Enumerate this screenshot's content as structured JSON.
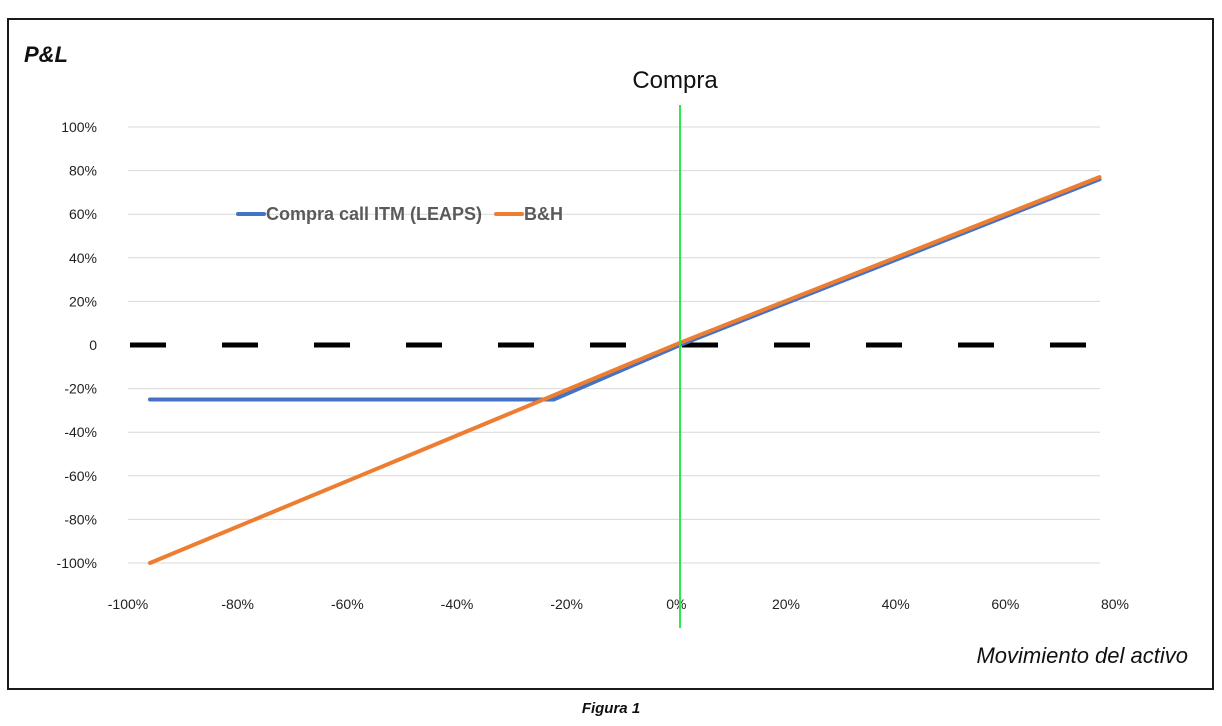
{
  "chart_data": {
    "type": "line",
    "ylabel": "P&L",
    "xlabel": "Movimiento del activo",
    "caption": "Figura 1",
    "vline": {
      "x": 0,
      "label": "Compra",
      "color": "#2ee84a"
    },
    "zero_line": {
      "style": "dashed",
      "color": "#000000"
    },
    "xticks": [
      {
        "label": "-100%"
      },
      {
        "label": "-80%"
      },
      {
        "label": "-60%"
      },
      {
        "label": "-40%"
      },
      {
        "label": "-20%"
      },
      {
        "label": "0%"
      },
      {
        "label": "20%"
      },
      {
        "label": "40%"
      },
      {
        "label": "60%"
      },
      {
        "label": "80%"
      }
    ],
    "yticks": [
      {
        "v": 100,
        "label": "100%"
      },
      {
        "v": 80,
        "label": "80%"
      },
      {
        "v": 60,
        "label": "60%"
      },
      {
        "v": 40,
        "label": "40%"
      },
      {
        "v": 20,
        "label": "20%"
      },
      {
        "v": 0,
        "label": "0"
      },
      {
        "v": -20,
        "label": "-20%"
      },
      {
        "v": -40,
        "label": "-40%"
      },
      {
        "v": -60,
        "label": "-60%"
      },
      {
        "v": -80,
        "label": "-80%"
      },
      {
        "v": -100,
        "label": "-100%"
      }
    ],
    "ylim": [
      -100,
      100
    ],
    "grid": true,
    "legend_position": "top-left",
    "series": [
      {
        "name": "Compra call ITM (LEAPS)",
        "color": "#4472c4",
        "points": [
          [
            -100,
            -25
          ],
          [
            -27,
            -25
          ],
          [
            0,
            0
          ],
          [
            77,
            76
          ]
        ]
      },
      {
        "name": "B&H",
        "color": "#ed7d31",
        "points": [
          [
            -100,
            -100
          ],
          [
            0,
            1
          ],
          [
            77,
            77
          ]
        ]
      }
    ]
  }
}
